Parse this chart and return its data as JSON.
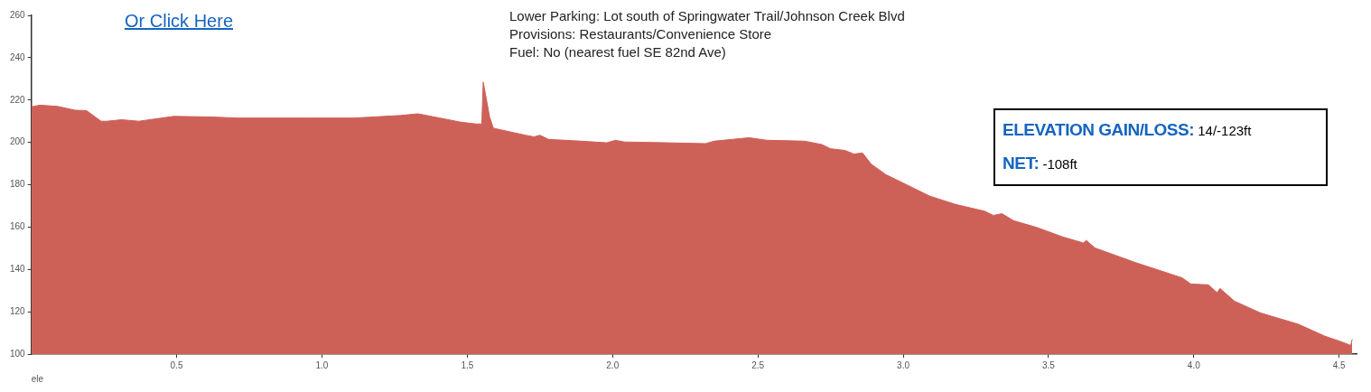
{
  "chart_data": {
    "type": "area",
    "xlabel": "ele",
    "x": [
      0,
      0.03,
      0.09,
      0.15,
      0.19,
      0.22,
      0.24,
      0.26,
      0.31,
      0.37,
      0.49,
      0.62,
      0.71,
      0.8,
      0.96,
      1.11,
      1.27,
      1.33,
      1.36,
      1.48,
      1.53,
      1.55,
      1.555,
      1.577,
      1.59,
      1.7,
      1.73,
      1.75,
      1.78,
      1.89,
      1.98,
      2.01,
      2.04,
      2.19,
      2.32,
      2.35,
      2.44,
      2.47,
      2.53,
      2.66,
      2.72,
      2.75,
      2.8,
      2.83,
      2.86,
      2.89,
      2.94,
      3.0,
      3.09,
      3.18,
      3.28,
      3.31,
      3.34,
      3.38,
      3.46,
      3.55,
      3.62,
      3.63,
      3.66,
      3.8,
      3.96,
      3.99,
      4.05,
      4.08,
      4.09,
      4.14,
      4.23,
      4.36,
      4.45,
      4.51,
      4.54,
      4.545
    ],
    "series": [
      {
        "color": "#cd6158",
        "values": [
          216.8,
          217.6,
          217,
          215.2,
          215,
          212,
          210,
          210,
          210.7,
          210,
          212.3,
          212,
          211.5,
          211.5,
          211.5,
          211.5,
          212.7,
          213.5,
          212.7,
          209.5,
          208.7,
          208.7,
          228.5,
          212,
          206.7,
          203.4,
          202.6,
          203.4,
          201.4,
          200.6,
          199.8,
          201,
          200.2,
          199.8,
          199.4,
          200.6,
          201.8,
          202.2,
          201,
          200.6,
          199,
          197,
          196.2,
          194.5,
          195,
          189.7,
          184.8,
          180.8,
          174.7,
          170.7,
          167.5,
          165.5,
          166.3,
          163,
          159.8,
          155.3,
          152.5,
          153.7,
          150.1,
          143.2,
          136,
          133.1,
          132.7,
          129,
          131,
          125,
          119.4,
          114.1,
          108.5,
          105.7,
          104.1,
          107
        ]
      }
    ],
    "xlim": [
      0,
      4.56
    ],
    "ylim": [
      100,
      260
    ],
    "xticks": [
      0.5,
      {
        "value": 1,
        "label": "1.0"
      },
      1.5,
      {
        "value": 2,
        "label": "2.0"
      },
      2.5,
      {
        "value": 3,
        "label": "3.0"
      },
      3.5,
      {
        "value": 4,
        "label": "4.0"
      },
      4.5
    ],
    "yticks": [
      100,
      120,
      140,
      160,
      180,
      200,
      220,
      240,
      260
    ],
    "grid": false,
    "legend": false,
    "marker": "none",
    "annotations": [
      "Or Click Here",
      "Lower Parking: Lot south of Springwater Trail/Johnson Creek Blvd",
      "Provisions: Restaurants/Convenience Store",
      "Fuel: No (nearest fuel SE 82nd Ave)",
      "ELEVATION GAIN/LOSS: 14/-123ft",
      "NET: -108ft"
    ]
  }
}
